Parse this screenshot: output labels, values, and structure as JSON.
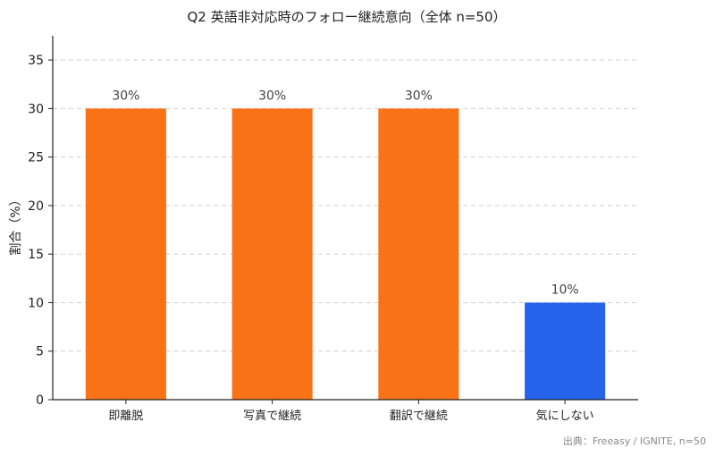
{
  "chart_data": {
    "type": "bar",
    "title": "Q2 英語非対応時のフォロー継続意向（全体 n=50）",
    "xlabel": "",
    "ylabel": "割合（%）",
    "categories": [
      "即離脱",
      "写真で継続",
      "翻訳で継続",
      "気にしない"
    ],
    "values": [
      30,
      30,
      30,
      10
    ],
    "value_labels": [
      "30%",
      "30%",
      "30%",
      "10%"
    ],
    "bar_colors": [
      "#F97316",
      "#F97316",
      "#F97316",
      "#2563EB"
    ],
    "ylim": [
      0,
      37.5
    ],
    "yticks": [
      0,
      5,
      10,
      15,
      20,
      25,
      30,
      35
    ],
    "grid": true,
    "source": "出典：Freeasy / IGNITE, n=50"
  }
}
